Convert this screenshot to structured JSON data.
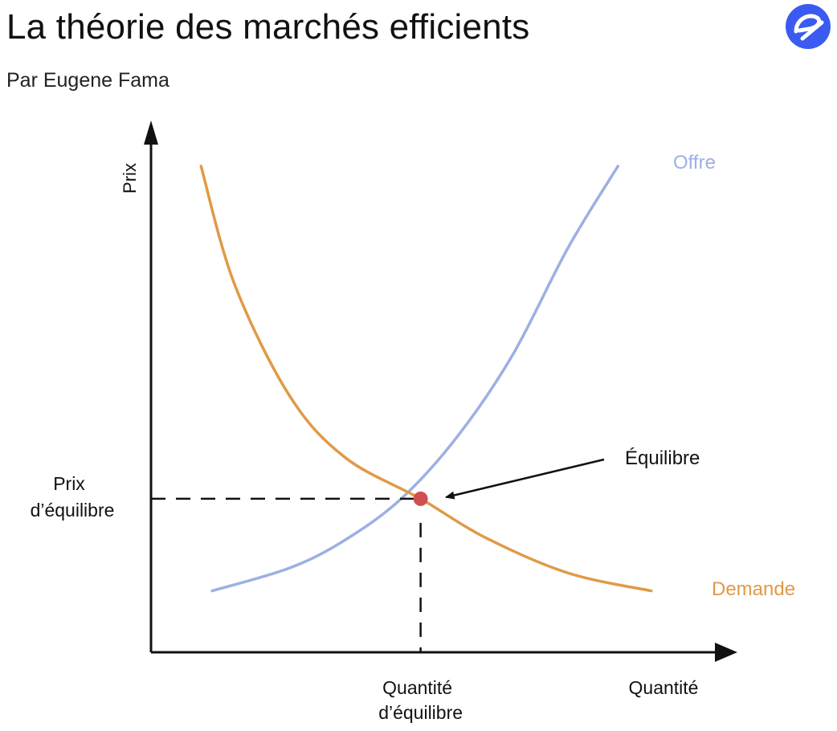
{
  "header": {
    "title": "La théorie des marchés efficients",
    "subtitle": "Par Eugene Fama",
    "logo_letter": "e"
  },
  "colors": {
    "supply": "#9DB0E3",
    "demand": "#E09A46",
    "equilibrium_point": "#D05050",
    "axis": "#111111",
    "logo_bg": "#3B5BF0"
  },
  "chart_data": {
    "type": "line",
    "title": "",
    "xlabel": "Quantité",
    "ylabel": "Prix",
    "xlim": [
      0,
      10
    ],
    "ylim": [
      0,
      10
    ],
    "grid": false,
    "series": [
      {
        "name": "Offre",
        "label_position": "top-right",
        "points": [
          [
            1.1,
            1.2
          ],
          [
            2.5,
            1.65
          ],
          [
            3.5,
            2.2
          ],
          [
            4.5,
            3.0
          ],
          [
            5.5,
            4.2
          ],
          [
            6.5,
            5.8
          ],
          [
            7.5,
            7.9
          ],
          [
            8.4,
            9.5
          ]
        ]
      },
      {
        "name": "Demande",
        "label_position": "bottom-right",
        "points": [
          [
            0.9,
            9.5
          ],
          [
            1.5,
            7.2
          ],
          [
            2.5,
            5.0
          ],
          [
            3.5,
            3.8
          ],
          [
            4.85,
            3.0
          ],
          [
            6.0,
            2.25
          ],
          [
            7.5,
            1.55
          ],
          [
            9.0,
            1.2
          ]
        ]
      }
    ],
    "equilibrium": {
      "x": 4.85,
      "y": 3.0,
      "label": "Équilibre",
      "x_label_lines": [
        "Quantité",
        "d’équilibre"
      ],
      "y_label_lines": [
        "Prix",
        "d’équilibre"
      ]
    }
  }
}
